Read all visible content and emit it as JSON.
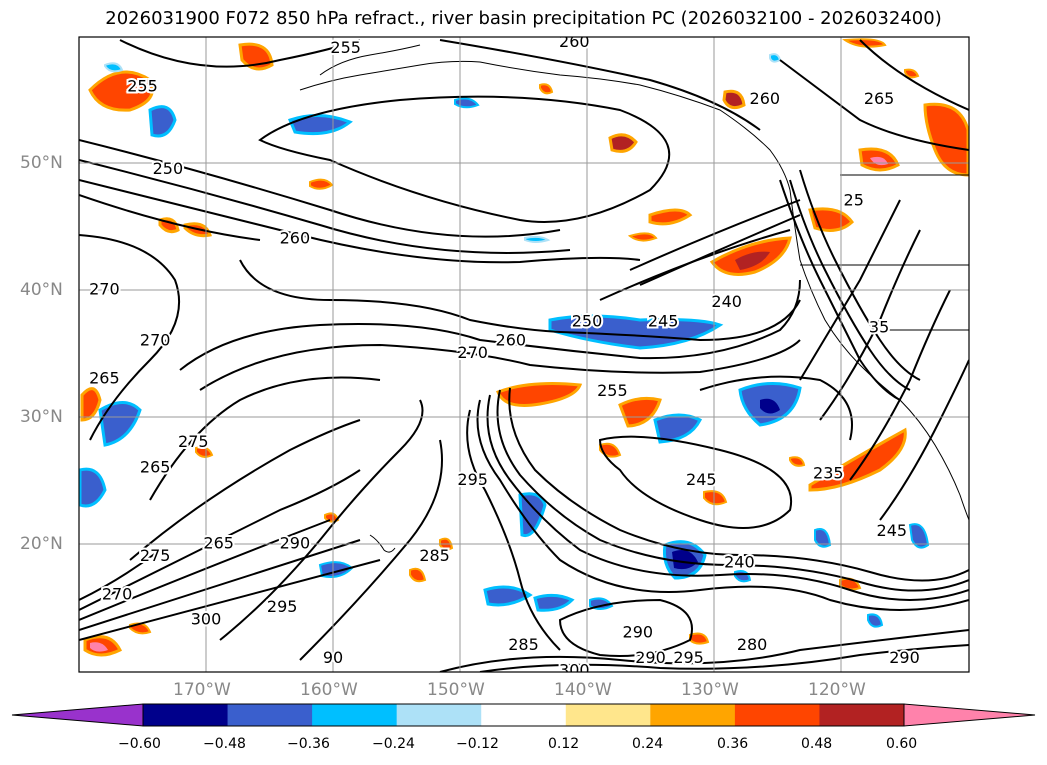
{
  "title": "2026031900 F072 850 hPa refract., river basin precipitation PC (2026032100 - 2026032400)",
  "axes": {
    "lat_ticks": [
      "50°N",
      "40°N",
      "30°N",
      "20°N"
    ],
    "lon_ticks": [
      "170°W",
      "160°W",
      "150°W",
      "140°W",
      "130°W",
      "120°W"
    ]
  },
  "colorbar": {
    "levels": [
      "−0.60",
      "−0.48",
      "−0.36",
      "−0.24",
      "−0.12",
      "0.12",
      "0.24",
      "0.36",
      "0.48",
      "0.60"
    ],
    "colors": [
      "#9932CC",
      "#00008B",
      "#3A5FCD",
      "#00BFFF",
      "#ADE1F7",
      "#FFFFFF",
      "#FFE68C",
      "#FFA500",
      "#FF4500",
      "#B22222",
      "#FF82AB"
    ]
  },
  "contour_labels": [
    {
      "text": "255",
      "lon": -159,
      "lat": 59
    },
    {
      "text": "260",
      "lon": -141,
      "lat": 59.5
    },
    {
      "text": "255",
      "lon": -175,
      "lat": 56
    },
    {
      "text": "250",
      "lon": -173,
      "lat": 49.5
    },
    {
      "text": "260",
      "lon": -163,
      "lat": 44
    },
    {
      "text": "260",
      "lon": -126,
      "lat": 55
    },
    {
      "text": "265",
      "lon": -117,
      "lat": 55
    },
    {
      "text": "270",
      "lon": -178,
      "lat": 40
    },
    {
      "text": "270",
      "lon": -174,
      "lat": 36
    },
    {
      "text": "265",
      "lon": -178,
      "lat": 33
    },
    {
      "text": "260",
      "lon": -146,
      "lat": 36
    },
    {
      "text": "270",
      "lon": -149,
      "lat": 35
    },
    {
      "text": "250",
      "lon": -140,
      "lat": 37.5
    },
    {
      "text": "245",
      "lon": -134,
      "lat": 37.5
    },
    {
      "text": "240",
      "lon": -129,
      "lat": 39
    },
    {
      "text": "255",
      "lon": -138,
      "lat": 32
    },
    {
      "text": "265",
      "lon": -174,
      "lat": 26
    },
    {
      "text": "275",
      "lon": -171,
      "lat": 28
    },
    {
      "text": "295",
      "lon": -149,
      "lat": 25
    },
    {
      "text": "245",
      "lon": -131,
      "lat": 25
    },
    {
      "text": "235",
      "lon": -121,
      "lat": 25.5
    },
    {
      "text": "245",
      "lon": -116,
      "lat": 21
    },
    {
      "text": "275",
      "lon": -174,
      "lat": 19
    },
    {
      "text": "265",
      "lon": -169,
      "lat": 20
    },
    {
      "text": "290",
      "lon": -163,
      "lat": 20
    },
    {
      "text": "285",
      "lon": -152,
      "lat": 19
    },
    {
      "text": "270",
      "lon": -177,
      "lat": 16
    },
    {
      "text": "300",
      "lon": -170,
      "lat": 14
    },
    {
      "text": "295",
      "lon": -164,
      "lat": 15
    },
    {
      "text": "240",
      "lon": -128,
      "lat": 18.5
    },
    {
      "text": "290",
      "lon": -136,
      "lat": 13
    },
    {
      "text": "285",
      "lon": -145,
      "lat": 12
    },
    {
      "text": "290",
      "lon": -135,
      "lat": 11
    },
    {
      "text": "295",
      "lon": -132,
      "lat": 11
    },
    {
      "text": "280",
      "lon": -127,
      "lat": 12
    },
    {
      "text": "300",
      "lon": -141,
      "lat": 10
    },
    {
      "text": "290",
      "lon": -115,
      "lat": 11
    },
    {
      "text": "90",
      "lon": -160,
      "lat": 11
    },
    {
      "text": "25",
      "lon": -119,
      "lat": 47
    },
    {
      "text": "35",
      "lon": -117,
      "lat": 37
    }
  ]
}
